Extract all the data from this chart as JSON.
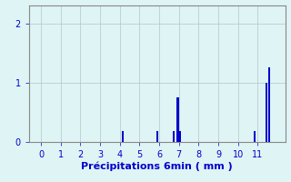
{
  "title": "",
  "xlabel": "Précipitations 6min ( mm )",
  "ylabel": "",
  "bar_color": "#0000cc",
  "background_color": "#dff4f4",
  "grid_color": "#b0c8c8",
  "text_color": "#0000cc",
  "axes_color": "#888888",
  "xlim": [
    -0.6,
    12.4
  ],
  "ylim": [
    0,
    2.3
  ],
  "yticks": [
    0,
    1,
    2
  ],
  "xticks": [
    0,
    1,
    2,
    3,
    4,
    5,
    6,
    7,
    8,
    9,
    10,
    11
  ],
  "bars": [
    {
      "x": 4.15,
      "height": 0.18
    },
    {
      "x": 5.9,
      "height": 0.18
    },
    {
      "x": 6.75,
      "height": 0.18
    },
    {
      "x": 6.95,
      "height": 0.75
    },
    {
      "x": 7.05,
      "height": 0.18
    },
    {
      "x": 10.85,
      "height": 0.18
    },
    {
      "x": 11.45,
      "height": 1.0
    },
    {
      "x": 11.6,
      "height": 1.25
    }
  ],
  "bar_width": 0.1,
  "tick_labelsize": 7,
  "xlabel_fontsize": 8
}
